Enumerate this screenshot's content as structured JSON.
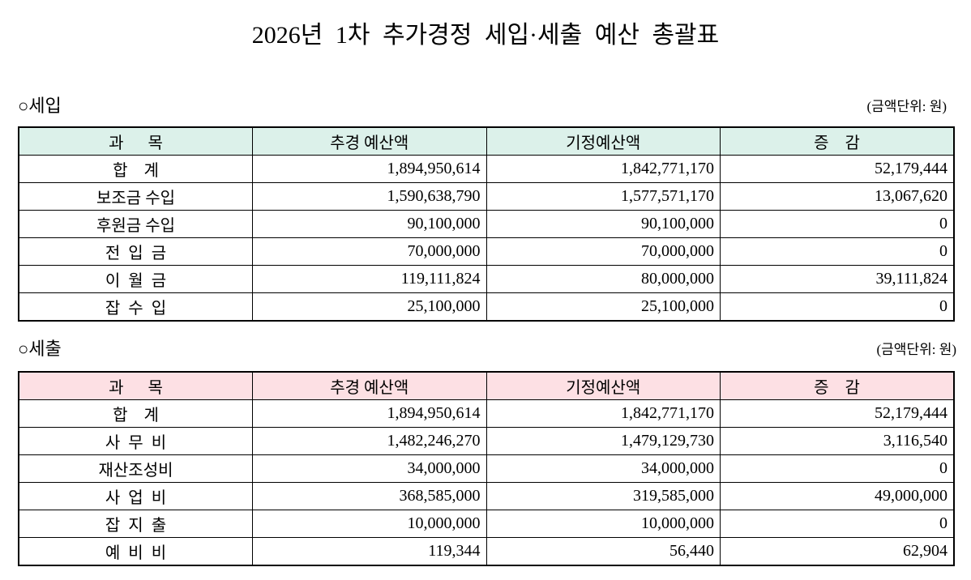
{
  "title": "2026년 1차 추가경정 세입·세출 예산 총괄표",
  "sections": [
    {
      "heading": "○세입",
      "unit": "(금액단위: 원)",
      "table": {
        "header": [
          "과      목",
          "추경 예산액",
          "기정예산액",
          "증    감"
        ],
        "rows": [
          [
            "합    계",
            "1,894,950,614",
            "1,842,771,170",
            "52,179,444"
          ],
          [
            "보조금 수입",
            "1,590,638,790",
            "1,577,571,170",
            "13,067,620"
          ],
          [
            "후원금 수입",
            "90,100,000",
            "90,100,000",
            "0"
          ],
          [
            "전  입  금",
            "70,000,000",
            "70,000,000",
            "0"
          ],
          [
            "이  월  금",
            "119,111,824",
            "80,000,000",
            "39,111,824"
          ],
          [
            "잡  수  입",
            "25,100,000",
            "25,100,000",
            "0"
          ]
        ]
      }
    },
    {
      "heading": "○세출",
      "unit": "(금액단위: 원)",
      "table": {
        "header": [
          "과      목",
          "추경 예산액",
          "기정예산액",
          "증    감"
        ],
        "rows": [
          [
            "합    계",
            "1,894,950,614",
            "1,842,771,170",
            "52,179,444"
          ],
          [
            "사  무  비",
            "1,482,246,270",
            "1,479,129,730",
            "3,116,540"
          ],
          [
            "재산조성비",
            "34,000,000",
            "34,000,000",
            "0"
          ],
          [
            "사  업  비",
            "368,585,000",
            "319,585,000",
            "49,000,000"
          ],
          [
            "잡  지  출",
            "10,000,000",
            "10,000,000",
            "0"
          ],
          [
            "예  비  비",
            "119,344",
            "56,440",
            "62,904"
          ]
        ]
      }
    }
  ]
}
